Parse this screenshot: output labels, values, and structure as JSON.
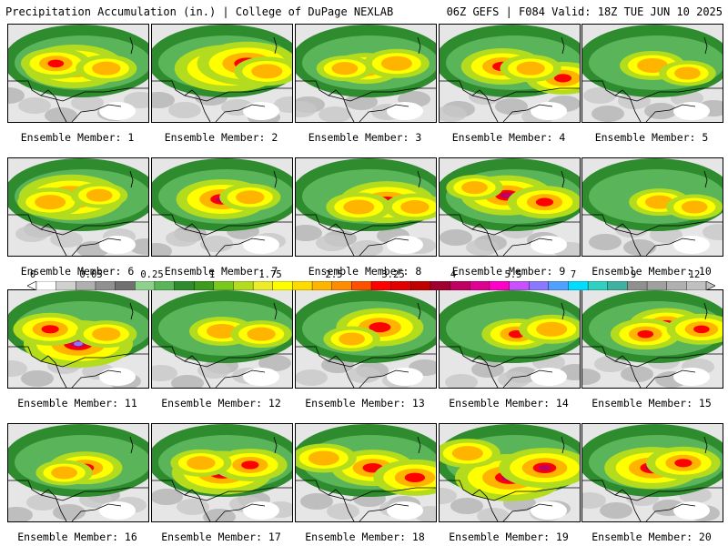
{
  "header": {
    "title_left": "Precipitation Accumulation (in.) | College of DuPage NEXLAB",
    "title_right": "06Z GEFS | F084 Valid: 18Z TUE JUN 10 2025"
  },
  "panels": [
    {
      "label": "Ensemble Member: 1",
      "cores": [
        [
          0.47,
          0.43,
          0.9
        ],
        [
          0.34,
          0.4,
          0.55
        ],
        [
          0.7,
          0.45,
          0.45
        ]
      ]
    },
    {
      "label": "Ensemble Member: 2",
      "cores": [
        [
          0.55,
          0.45,
          1.0
        ],
        [
          0.68,
          0.4,
          0.9
        ],
        [
          0.82,
          0.48,
          0.5
        ]
      ]
    },
    {
      "label": "Ensemble Member: 3",
      "cores": [
        [
          0.5,
          0.45,
          0.55
        ],
        [
          0.72,
          0.4,
          0.5
        ],
        [
          0.35,
          0.45,
          0.4
        ]
      ]
    },
    {
      "label": "Ensemble Member: 4",
      "cores": [
        [
          0.45,
          0.43,
          0.7
        ],
        [
          0.88,
          0.55,
          0.6
        ],
        [
          0.65,
          0.45,
          0.45
        ]
      ]
    },
    {
      "label": "Ensemble Member: 5",
      "cores": [
        [
          0.5,
          0.42,
          0.5
        ],
        [
          0.75,
          0.5,
          0.4
        ]
      ]
    },
    {
      "label": "Ensemble Member: 6",
      "cores": [
        [
          0.45,
          0.4,
          0.95
        ],
        [
          0.3,
          0.45,
          0.5
        ],
        [
          0.65,
          0.38,
          0.4
        ]
      ]
    },
    {
      "label": "Ensemble Member: 7",
      "cores": [
        [
          0.5,
          0.42,
          0.8
        ],
        [
          0.7,
          0.4,
          0.45
        ]
      ]
    },
    {
      "label": "Ensemble Member: 8",
      "cores": [
        [
          0.65,
          0.45,
          0.85
        ],
        [
          0.45,
          0.5,
          0.5
        ],
        [
          0.85,
          0.5,
          0.45
        ]
      ]
    },
    {
      "label": "Ensemble Member: 9",
      "cores": [
        [
          0.48,
          0.38,
          0.8
        ],
        [
          0.75,
          0.45,
          0.6
        ],
        [
          0.25,
          0.3,
          0.4
        ]
      ]
    },
    {
      "label": "Ensemble Member: 10",
      "cores": [
        [
          0.55,
          0.45,
          0.45
        ],
        [
          0.8,
          0.5,
          0.4
        ]
      ]
    },
    {
      "label": "Ensemble Member: 11",
      "cores": [
        [
          0.5,
          0.55,
          1.0
        ],
        [
          0.3,
          0.4,
          0.6
        ],
        [
          0.7,
          0.45,
          0.45
        ]
      ]
    },
    {
      "label": "Ensemble Member: 12",
      "cores": [
        [
          0.5,
          0.42,
          0.5
        ],
        [
          0.78,
          0.45,
          0.45
        ]
      ]
    },
    {
      "label": "Ensemble Member: 13",
      "cores": [
        [
          0.6,
          0.38,
          0.75
        ],
        [
          0.4,
          0.5,
          0.4
        ]
      ]
    },
    {
      "label": "Ensemble Member: 14",
      "cores": [
        [
          0.55,
          0.45,
          0.55
        ],
        [
          0.8,
          0.4,
          0.5
        ]
      ]
    },
    {
      "label": "Ensemble Member: 15",
      "cores": [
        [
          0.6,
          0.35,
          0.6
        ],
        [
          0.45,
          0.45,
          0.55
        ],
        [
          0.85,
          0.4,
          0.55
        ]
      ]
    },
    {
      "label": "Ensemble Member: 16",
      "cores": [
        [
          0.55,
          0.45,
          0.6
        ],
        [
          0.4,
          0.5,
          0.4
        ]
      ]
    },
    {
      "label": "Ensemble Member: 17",
      "cores": [
        [
          0.5,
          0.5,
          0.9
        ],
        [
          0.7,
          0.42,
          0.6
        ],
        [
          0.35,
          0.4,
          0.45
        ]
      ]
    },
    {
      "label": "Ensemble Member: 18",
      "cores": [
        [
          0.55,
          0.45,
          0.7
        ],
        [
          0.85,
          0.55,
          0.7
        ],
        [
          0.2,
          0.35,
          0.5
        ]
      ]
    },
    {
      "label": "Ensemble Member: 19",
      "cores": [
        [
          0.5,
          0.55,
          1.0
        ],
        [
          0.75,
          0.45,
          0.8
        ],
        [
          0.2,
          0.3,
          0.5
        ]
      ]
    },
    {
      "label": "Ensemble Member: 20",
      "cores": [
        [
          0.5,
          0.45,
          0.85
        ],
        [
          0.72,
          0.4,
          0.6
        ]
      ]
    }
  ],
  "colorbar": {
    "tick_labels": [
      "0",
      "0.05",
      "0.25",
      "1",
      "1.75",
      "2.5",
      "3.25",
      "4",
      "5.5",
      "7",
      "9",
      "12"
    ],
    "colors": [
      "#ffffff",
      "#d0d0d0",
      "#b0b0b0",
      "#909090",
      "#707070",
      "#8ed08e",
      "#5ab45a",
      "#2e8b2e",
      "#3c9a1e",
      "#78c81e",
      "#b4dc1e",
      "#ecec28",
      "#ffff00",
      "#ffdc00",
      "#ffb400",
      "#ff8c00",
      "#ff5000",
      "#ff0000",
      "#e00000",
      "#c00000",
      "#a00030",
      "#c00060",
      "#e00090",
      "#ff00c8",
      "#c850ff",
      "#8c78ff",
      "#50a0ff",
      "#00dcff",
      "#30d0c0",
      "#40b0a0",
      "#909090",
      "#a0a0a0",
      "#b0b0b0",
      "#c0c0c0"
    ]
  }
}
